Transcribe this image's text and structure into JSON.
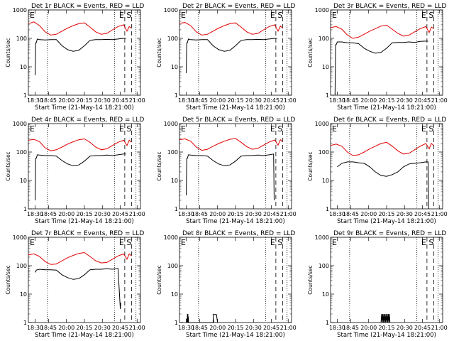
{
  "common": {
    "xlabel": "Start Time (21-May-14 18:21:00)",
    "ylabel": "Counts/sec",
    "x_ticks": [
      "18:30",
      "18:45",
      "20:00",
      "20:15",
      "20:30",
      "20:45",
      "21:00"
    ],
    "y_ticks": [
      "1",
      "10",
      "100",
      "1000"
    ],
    "ylim": [
      1,
      1000
    ],
    "ylog": true,
    "marker_labels": {
      "E": "E",
      "S": "S"
    },
    "colors": {
      "events": "#000000",
      "lld": "#e00000",
      "axes": "#000000"
    }
  },
  "chart_data": [
    {
      "type": "line",
      "title": "Det 1r BLACK = Events, RED = LLD",
      "series": [
        {
          "name": "LLD",
          "x": [
            0.0,
            0.05,
            0.1,
            0.15,
            0.2,
            0.25,
            0.3,
            0.35,
            0.4,
            0.45,
            0.5,
            0.55,
            0.6,
            0.65,
            0.7,
            0.75,
            0.8,
            0.85,
            0.88,
            0.9,
            0.92
          ],
          "values": [
            330,
            380,
            280,
            170,
            130,
            140,
            180,
            230,
            280,
            330,
            350,
            250,
            170,
            140,
            150,
            200,
            260,
            300,
            180,
            260,
            230
          ]
        },
        {
          "name": "Events",
          "x": [
            0.06,
            0.065,
            0.07,
            0.08,
            0.1,
            0.15,
            0.2,
            0.25,
            0.3,
            0.35,
            0.4,
            0.45,
            0.5,
            0.55,
            0.6,
            0.65,
            0.7,
            0.75,
            0.8,
            0.85,
            0.87
          ],
          "values": [
            5,
            70,
            70,
            95,
            90,
            88,
            90,
            90,
            55,
            40,
            35,
            38,
            55,
            85,
            90,
            90,
            92,
            90,
            95,
            100,
            100
          ]
        }
      ]
    },
    {
      "type": "line",
      "title": "Det 2r BLACK = Events, RED = LLD",
      "series": [
        {
          "name": "LLD",
          "x": [
            0.0,
            0.05,
            0.1,
            0.15,
            0.2,
            0.25,
            0.3,
            0.35,
            0.4,
            0.45,
            0.5,
            0.55,
            0.6,
            0.65,
            0.7,
            0.75,
            0.8,
            0.85,
            0.88,
            0.9,
            0.92
          ],
          "values": [
            340,
            360,
            280,
            170,
            130,
            140,
            180,
            230,
            280,
            330,
            350,
            250,
            170,
            140,
            150,
            200,
            260,
            300,
            180,
            270,
            230
          ]
        },
        {
          "name": "Events",
          "x": [
            0.06,
            0.065,
            0.07,
            0.08,
            0.1,
            0.15,
            0.2,
            0.25,
            0.3,
            0.35,
            0.4,
            0.45,
            0.5,
            0.55,
            0.6,
            0.65,
            0.7,
            0.75,
            0.8,
            0.85,
            0.87
          ],
          "values": [
            6,
            70,
            70,
            95,
            90,
            88,
            90,
            90,
            55,
            40,
            35,
            38,
            55,
            85,
            90,
            90,
            92,
            90,
            95,
            100,
            100
          ]
        }
      ]
    },
    {
      "type": "line",
      "title": "Det 3r BLACK = Events, RED = LLD",
      "series": [
        {
          "name": "LLD",
          "x": [
            0.0,
            0.05,
            0.1,
            0.15,
            0.2,
            0.25,
            0.3,
            0.35,
            0.4,
            0.45,
            0.5,
            0.55,
            0.6,
            0.65,
            0.7,
            0.75,
            0.8,
            0.85,
            0.88,
            0.9,
            0.92
          ],
          "values": [
            240,
            260,
            210,
            130,
            100,
            110,
            140,
            180,
            220,
            270,
            290,
            210,
            150,
            120,
            130,
            170,
            220,
            260,
            160,
            250,
            220
          ]
        },
        {
          "name": "Events",
          "x": [
            0.04,
            0.045,
            0.05,
            0.06,
            0.1,
            0.15,
            0.2,
            0.25,
            0.3,
            0.35,
            0.4,
            0.45,
            0.5,
            0.55,
            0.6,
            0.65,
            0.7,
            0.75,
            0.8,
            0.85,
            0.87
          ],
          "values": [
            1,
            60,
            60,
            75,
            75,
            70,
            70,
            65,
            45,
            35,
            30,
            32,
            45,
            70,
            72,
            72,
            75,
            72,
            78,
            80,
            80
          ]
        }
      ]
    },
    {
      "type": "line",
      "title": "Det 4r BLACK = Events, RED = LLD",
      "series": [
        {
          "name": "LLD",
          "x": [
            0.0,
            0.05,
            0.1,
            0.15,
            0.2,
            0.25,
            0.3,
            0.35,
            0.4,
            0.45,
            0.5,
            0.55,
            0.6,
            0.65,
            0.7,
            0.75,
            0.8,
            0.85,
            0.88,
            0.9,
            0.92
          ],
          "values": [
            260,
            280,
            230,
            140,
            110,
            120,
            150,
            190,
            230,
            270,
            290,
            220,
            150,
            120,
            130,
            170,
            220,
            260,
            170,
            260,
            220
          ]
        },
        {
          "name": "Events",
          "x": [
            0.06,
            0.065,
            0.07,
            0.08,
            0.1,
            0.15,
            0.2,
            0.25,
            0.3,
            0.35,
            0.4,
            0.45,
            0.5,
            0.55,
            0.6,
            0.65,
            0.7,
            0.75,
            0.8,
            0.85,
            0.87
          ],
          "values": [
            2,
            60,
            60,
            80,
            78,
            75,
            75,
            72,
            50,
            38,
            33,
            35,
            48,
            72,
            75,
            75,
            78,
            75,
            80,
            85,
            85
          ]
        }
      ]
    },
    {
      "type": "line",
      "title": "Det 5r BLACK = Events, RED = LLD",
      "series": [
        {
          "name": "LLD",
          "x": [
            0.0,
            0.05,
            0.1,
            0.15,
            0.2,
            0.25,
            0.3,
            0.35,
            0.4,
            0.45,
            0.5,
            0.55,
            0.6,
            0.65,
            0.7,
            0.75,
            0.8,
            0.85,
            0.88,
            0.9,
            0.92
          ],
          "values": [
            270,
            290,
            240,
            150,
            115,
            125,
            160,
            200,
            240,
            280,
            300,
            220,
            155,
            125,
            135,
            175,
            225,
            265,
            175,
            270,
            230
          ]
        },
        {
          "name": "Events",
          "x": [
            0.06,
            0.065,
            0.07,
            0.08,
            0.1,
            0.15,
            0.2,
            0.25,
            0.3,
            0.35,
            0.4,
            0.45,
            0.5,
            0.55,
            0.6,
            0.65,
            0.7,
            0.75,
            0.8,
            0.84,
            0.845
          ],
          "values": [
            3,
            60,
            60,
            80,
            78,
            75,
            75,
            72,
            50,
            38,
            33,
            35,
            48,
            72,
            75,
            75,
            78,
            75,
            80,
            85,
            2
          ]
        }
      ]
    },
    {
      "type": "line",
      "title": "Det 6r BLACK = Events, RED = LLD",
      "series": [
        {
          "name": "LLD",
          "x": [
            0.0,
            0.05,
            0.1,
            0.15,
            0.2,
            0.25,
            0.3,
            0.35,
            0.4,
            0.45,
            0.5,
            0.55,
            0.6,
            0.65,
            0.7,
            0.75,
            0.8,
            0.85,
            0.88,
            0.9,
            0.92
          ],
          "values": [
            170,
            190,
            160,
            100,
            75,
            80,
            100,
            130,
            160,
            200,
            220,
            160,
            110,
            85,
            90,
            120,
            160,
            200,
            130,
            200,
            170
          ]
        },
        {
          "name": "Events",
          "x": [
            0.06,
            0.1,
            0.15,
            0.2,
            0.25,
            0.3,
            0.35,
            0.4,
            0.45,
            0.5,
            0.55,
            0.6,
            0.65,
            0.7,
            0.75,
            0.8,
            0.85,
            0.87,
            0.875
          ],
          "values": [
            30,
            40,
            45,
            45,
            42,
            40,
            30,
            20,
            15,
            14,
            16,
            20,
            30,
            38,
            40,
            42,
            45,
            45,
            1
          ]
        }
      ]
    },
    {
      "type": "line",
      "title": "Det 7r BLACK = Events, RED = LLD",
      "series": [
        {
          "name": "LLD",
          "x": [
            0.0,
            0.05,
            0.1,
            0.15,
            0.2,
            0.25,
            0.3,
            0.35,
            0.4,
            0.45,
            0.5,
            0.55,
            0.6,
            0.65,
            0.7,
            0.75,
            0.8,
            0.85,
            0.88,
            0.9,
            0.92
          ],
          "values": [
            240,
            260,
            210,
            140,
            110,
            115,
            150,
            190,
            230,
            270,
            290,
            210,
            150,
            125,
            130,
            170,
            220,
            260,
            170,
            260,
            220
          ]
        },
        {
          "name": "Events",
          "x": [
            0.06,
            0.065,
            0.07,
            0.1,
            0.15,
            0.2,
            0.25,
            0.3,
            0.35,
            0.4,
            0.45,
            0.5,
            0.55,
            0.6,
            0.65,
            0.7,
            0.75,
            0.8,
            0.82,
            0.825
          ],
          "values": [
            60,
            60,
            70,
            75,
            72,
            72,
            70,
            48,
            38,
            33,
            35,
            48,
            72,
            75,
            75,
            78,
            75,
            80,
            3,
            5
          ]
        }
      ]
    },
    {
      "type": "line",
      "title": "Det 8r BLACK = Events, RED = LLD",
      "series": [
        {
          "name": "Events",
          "x": [
            0.065,
            0.067,
            0.069,
            0.071,
            0.073,
            0.075,
            0.077,
            0.079,
            0.081,
            0.3,
            0.302,
            0.305,
            0.3,
            0.33,
            0.34
          ],
          "values": [
            1,
            1.4,
            1,
            2,
            1,
            2,
            1,
            1.6,
            1,
            1,
            1.5,
            1,
            1.9,
            1.9,
            1
          ]
        }
      ]
    },
    {
      "type": "line",
      "title": "Det 9r BLACK = Events, RED = LLD",
      "series": [
        {
          "name": "Events",
          "x": [
            0.45,
            0.455,
            0.46,
            0.465,
            0.47,
            0.475,
            0.48,
            0.485,
            0.49,
            0.495,
            0.5,
            0.505,
            0.51,
            0.515,
            0.52,
            0.525,
            0.53
          ],
          "values": [
            1,
            2,
            1,
            2,
            1,
            2,
            1,
            2,
            1,
            2,
            1,
            2,
            1,
            2,
            1,
            2,
            1
          ]
        }
      ]
    }
  ]
}
